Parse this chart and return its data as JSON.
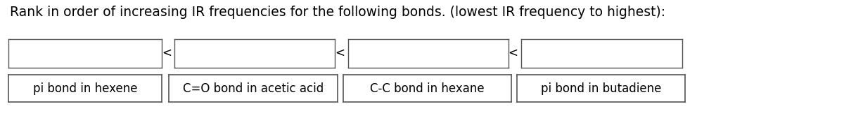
{
  "title": "Rank in order of increasing IR frequencies for the following bonds. (lowest IR frequency to highest):",
  "title_fontsize": 13.5,
  "title_color": "#000000",
  "background_color": "#ffffff",
  "labels_row2": [
    "pi bond in hexene",
    "C=O bond in acetic acid",
    "C-C bond in hexane",
    "pi bond in butadiene"
  ],
  "less_than_symbol": "<",
  "box_edgecolor": "#555555",
  "box_facecolor": "#ffffff",
  "text_color": "#000000",
  "label_fontsize": 12,
  "figwidth": 12.0,
  "figheight": 1.89,
  "dpi": 100
}
